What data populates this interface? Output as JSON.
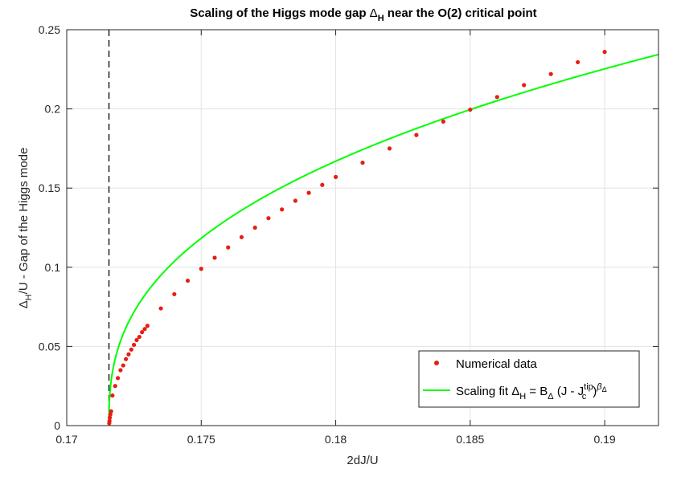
{
  "chart_data": {
    "type": "scatter",
    "title": {
      "prefix": "Scaling of the Higgs mode gap ",
      "delta": "Δ",
      "sub": "H",
      "suffix": " near the O(2) critical point"
    },
    "xlabel": "2dJ/U",
    "ylabel": {
      "delta": "Δ",
      "sub": "H",
      "rest": "/U - Gap of the Higgs mode"
    },
    "xlim": [
      0.17,
      0.192
    ],
    "ylim": [
      0,
      0.25
    ],
    "xticks": [
      0.17,
      0.175,
      0.18,
      0.185,
      0.19
    ],
    "xtick_labels": [
      "0.17",
      "0.175",
      "0.18",
      "0.185",
      "0.19"
    ],
    "yticks": [
      0,
      0.05,
      0.1,
      0.15,
      0.2,
      0.25
    ],
    "ytick_labels": [
      "0",
      "0.05",
      "0.1",
      "0.15",
      "0.2",
      "0.25"
    ],
    "grid": true,
    "legend_position": "bottom-right",
    "critical_point_x": 0.17157,
    "series": [
      {
        "name": "Numerical data",
        "kind": "markers",
        "color": "#e61e14",
        "x": [
          0.17158,
          0.17159,
          0.1716,
          0.17162,
          0.17165,
          0.1717,
          0.1718,
          0.1719,
          0.172,
          0.1721,
          0.1722,
          0.1723,
          0.1724,
          0.1725,
          0.1726,
          0.1727,
          0.1728,
          0.1729,
          0.173,
          0.1735,
          0.174,
          0.1745,
          0.175,
          0.1755,
          0.176,
          0.1765,
          0.177,
          0.1775,
          0.178,
          0.1785,
          0.179,
          0.1795,
          0.18,
          0.181,
          0.182,
          0.183,
          0.184,
          0.185,
          0.186,
          0.187,
          0.188,
          0.189,
          0.19
        ],
        "y": [
          0.0015,
          0.003,
          0.005,
          0.007,
          0.009,
          0.019,
          0.025,
          0.03,
          0.035,
          0.038,
          0.042,
          0.045,
          0.048,
          0.051,
          0.054,
          0.056,
          0.059,
          0.061,
          0.063,
          0.074,
          0.083,
          0.0915,
          0.099,
          0.106,
          0.1125,
          0.119,
          0.125,
          0.131,
          0.1365,
          0.142,
          0.147,
          0.152,
          0.157,
          0.166,
          0.175,
          0.1835,
          0.192,
          0.1995,
          0.2075,
          0.215,
          0.222,
          0.2295,
          0.236
        ]
      },
      {
        "name": {
          "prefix": "Scaling fit ",
          "delta": "Δ",
          "sub_h": "H",
          "eq": " = B",
          "sub_delta": "Δ",
          "mid": " (J - J",
          "sup_tip": "tip",
          "sub_c": "c",
          "close": ")",
          "sup_beta": "β",
          "sup_beta_sub": "Δ"
        },
        "kind": "line",
        "color": "#00ff00",
        "model": "y = B (x - xc)^beta",
        "xc": 0.17157,
        "B": 1.04,
        "beta": 0.383,
        "x_range": [
          0.17157,
          0.192
        ]
      }
    ],
    "threshold_line": {
      "color": "#000000",
      "style": "dashed"
    }
  }
}
